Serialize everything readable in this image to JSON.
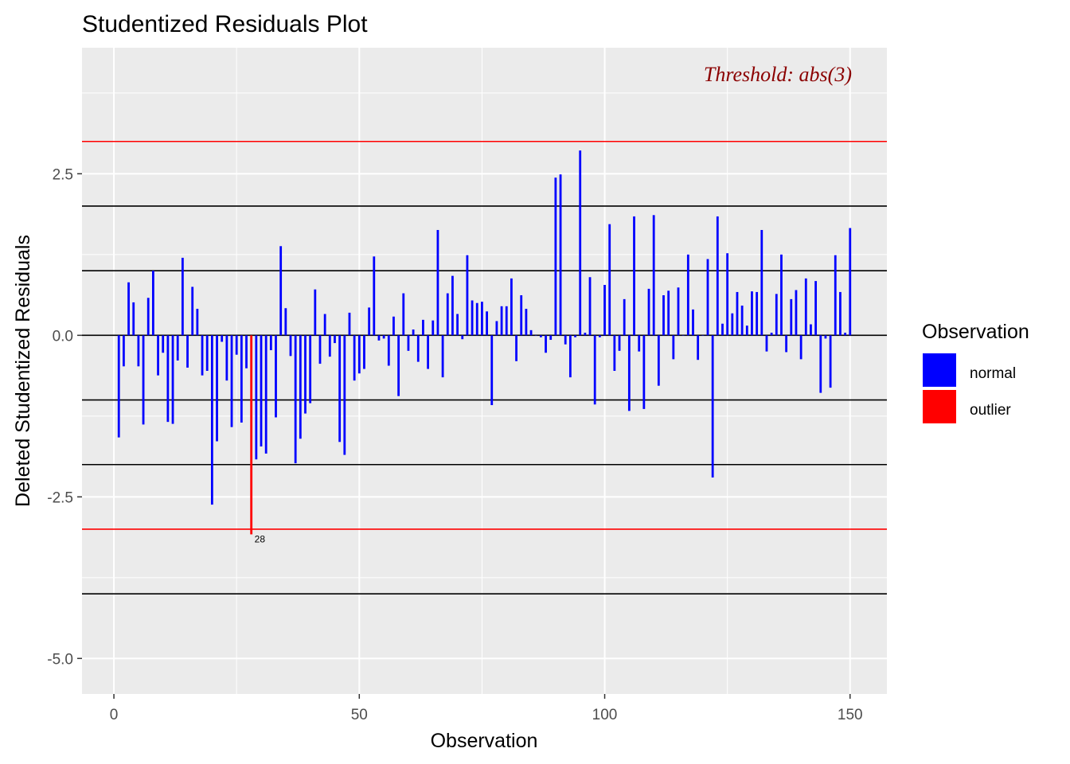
{
  "chart_data": {
    "type": "bar",
    "title": "Studentized Residuals Plot",
    "xlabel": "Observation",
    "ylabel": "Deleted Studentized Residuals",
    "xlim": [
      -6.5,
      157.5
    ],
    "ylim": [
      -5.55,
      4.45
    ],
    "x_ticks": [
      0,
      50,
      100,
      150
    ],
    "x_tick_labels": [
      "0",
      "50",
      "100",
      "150"
    ],
    "y_ticks": [
      -5,
      -2.5,
      0,
      2.5
    ],
    "y_tick_labels": [
      "-5.0",
      "-2.5",
      "0.0",
      "2.5"
    ],
    "grid": true,
    "annotation": "Threshold: abs(3)",
    "threshold": 3,
    "threshold_color": "#ff0000",
    "reference_lines": [
      2,
      1,
      0,
      -1,
      -2,
      -4
    ],
    "legend": {
      "title": "Observation",
      "position": "right",
      "entries": [
        {
          "label": "normal",
          "color": "#0000ff"
        },
        {
          "label": "outlier",
          "color": "#ff0000"
        }
      ]
    },
    "outliers": [
      {
        "x": 28,
        "label": "28"
      }
    ],
    "values": [
      -1.58,
      -0.48,
      0.82,
      0.51,
      -0.48,
      -1.38,
      0.58,
      1.0,
      -0.62,
      -0.27,
      -1.34,
      -1.37,
      -0.39,
      1.2,
      -0.5,
      0.75,
      0.41,
      -0.62,
      -0.55,
      -2.62,
      -1.64,
      -0.1,
      -0.7,
      -1.42,
      -0.3,
      -1.35,
      -0.51,
      -3.08,
      -1.92,
      -1.72,
      -1.83,
      -0.23,
      -1.27,
      1.38,
      0.42,
      -0.32,
      -1.98,
      -1.6,
      -1.21,
      -1.05,
      0.71,
      -0.44,
      0.33,
      -0.33,
      -0.12,
      -1.65,
      -1.85,
      0.35,
      -0.7,
      -0.59,
      -0.52,
      0.43,
      1.22,
      -0.08,
      -0.05,
      -0.47,
      0.29,
      -0.94,
      0.65,
      -0.24,
      0.09,
      -0.41,
      0.24,
      -0.52,
      0.23,
      1.63,
      -0.65,
      0.65,
      0.92,
      0.33,
      -0.06,
      1.24,
      0.54,
      0.5,
      0.52,
      0.37,
      -1.08,
      0.22,
      0.45,
      0.45,
      0.88,
      -0.4,
      0.62,
      0.41,
      0.08,
      0.0,
      -0.03,
      -0.27,
      -0.07,
      2.44,
      2.49,
      -0.14,
      -0.65,
      -0.03,
      2.86,
      0.04,
      0.9,
      -1.07,
      -0.03,
      0.78,
      1.72,
      -0.55,
      -0.24,
      0.56,
      -1.17,
      1.84,
      -0.25,
      -1.14,
      0.72,
      1.86,
      -0.78,
      0.62,
      0.69,
      -0.37,
      0.74,
      0.0,
      1.25,
      0.4,
      -0.38,
      0.0,
      1.18,
      -2.2,
      1.84,
      0.18,
      1.27,
      0.34,
      0.67,
      0.46,
      0.15,
      0.68,
      0.67,
      1.63,
      -0.25,
      0.04,
      0.64,
      1.25,
      -0.26,
      0.56,
      0.7,
      -0.37,
      0.88,
      0.17,
      0.84,
      -0.89,
      -0.05,
      -0.81,
      1.24,
      0.67,
      0.04,
      1.66
    ]
  }
}
